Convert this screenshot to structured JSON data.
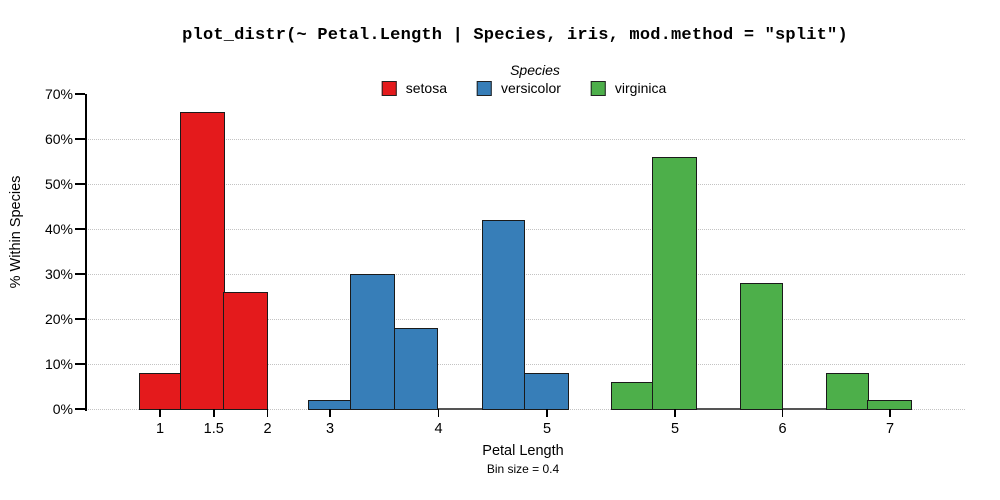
{
  "chart_data": {
    "type": "bar",
    "title": "plot_distr(~ Petal.Length | Species, iris, mod.method = \"split\")",
    "ylabel": "% Within Species",
    "xlabel": "Petal Length",
    "x_sublabel": "Bin size = 0.4",
    "bin_size": 0.4,
    "ylim": [
      0,
      70
    ],
    "yticks_pct": [
      0,
      10,
      20,
      30,
      40,
      50,
      60,
      70
    ],
    "ytick_labels": [
      "0%",
      "10%",
      "20%",
      "30%",
      "40%",
      "50%",
      "60%",
      "70%"
    ],
    "grid": "horizontal dotted lines at 0-60%",
    "legend_position": "top-center",
    "legend": {
      "title": "Species",
      "entries": [
        {
          "label": "setosa",
          "color": "#e41a1c"
        },
        {
          "label": "versicolor",
          "color": "#377eb8"
        },
        {
          "label": "virginica",
          "color": "#4daf4a"
        }
      ]
    },
    "series": [
      {
        "name": "setosa",
        "color": "#e41a1c",
        "bin_start": 0.8,
        "values_pct": [
          8,
          66,
          26
        ],
        "xticks": [
          {
            "v": 1,
            "label": "1"
          },
          {
            "v": 1.5,
            "label": "1.5"
          },
          {
            "v": 2,
            "label": "2"
          }
        ]
      },
      {
        "name": "versicolor",
        "color": "#377eb8",
        "bin_start": 2.8,
        "values_pct": [
          2,
          30,
          18,
          0,
          42,
          8
        ],
        "xticks": [
          {
            "v": 3,
            "label": "3"
          },
          {
            "v": 4,
            "label": "4"
          },
          {
            "v": 5,
            "label": "5"
          }
        ]
      },
      {
        "name": "virginica",
        "color": "#4daf4a",
        "bin_start": 4.4,
        "values_pct": [
          6,
          56,
          0,
          28,
          0,
          8,
          2
        ],
        "xticks": [
          {
            "v": 5,
            "label": "5"
          },
          {
            "v": 6,
            "label": "6"
          },
          {
            "v": 7,
            "label": "7"
          }
        ]
      }
    ]
  }
}
